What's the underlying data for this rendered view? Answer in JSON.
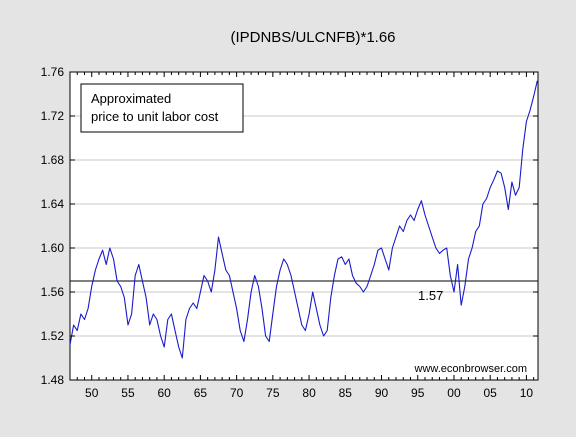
{
  "chart_data": {
    "type": "line",
    "title": "(IPDNBS/ULCNFB)*1.66",
    "xlabel": "",
    "ylabel": "",
    "legend_text": [
      "Approximated",
      "price to unit labor cost"
    ],
    "watermark": "www.econbrowser.com",
    "reference_line": {
      "value": 1.57,
      "label": "1.57"
    },
    "ylim": [
      1.48,
      1.76
    ],
    "y_ticks": [
      1.48,
      1.52,
      1.56,
      1.6,
      1.64,
      1.68,
      1.72,
      1.76
    ],
    "y_tick_labels": [
      "1.48",
      "1.52",
      "1.56",
      "1.60",
      "1.64",
      "1.68",
      "1.72",
      "1.76"
    ],
    "xlim": [
      1947,
      2011.6
    ],
    "x_ticks": [
      1950,
      1955,
      1960,
      1965,
      1970,
      1975,
      1980,
      1985,
      1990,
      1995,
      2000,
      2005,
      2010
    ],
    "x_tick_labels": [
      "50",
      "55",
      "60",
      "65",
      "70",
      "75",
      "80",
      "85",
      "90",
      "95",
      "00",
      "05",
      "10"
    ],
    "grid": true,
    "line_color": "#1a1acc",
    "series": [
      {
        "x": [
          1947.0,
          1947.5,
          1948.0,
          1948.5,
          1949.0,
          1949.5,
          1950.0,
          1950.5,
          1951.0,
          1951.5,
          1952.0,
          1952.5,
          1953.0,
          1953.5,
          1954.0,
          1954.5,
          1955.0,
          1955.5,
          1956.0,
          1956.5,
          1957.0,
          1957.5,
          1958.0,
          1958.5,
          1959.0,
          1959.5,
          1960.0,
          1960.5,
          1961.0,
          1961.5,
          1962.0,
          1962.5,
          1963.0,
          1963.5,
          1964.0,
          1964.5,
          1965.0,
          1965.5,
          1966.0,
          1966.5,
          1967.0,
          1967.5,
          1968.0,
          1968.5,
          1969.0,
          1969.5,
          1970.0,
          1970.5,
          1971.0,
          1971.5,
          1972.0,
          1972.5,
          1973.0,
          1973.5,
          1974.0,
          1974.5,
          1975.0,
          1975.5,
          1976.0,
          1976.5,
          1977.0,
          1977.5,
          1978.0,
          1978.5,
          1979.0,
          1979.5,
          1980.0,
          1980.5,
          1981.0,
          1981.5,
          1982.0,
          1982.5,
          1983.0,
          1983.5,
          1984.0,
          1984.5,
          1985.0,
          1985.5,
          1986.0,
          1986.5,
          1987.0,
          1987.5,
          1988.0,
          1988.5,
          1989.0,
          1989.5,
          1990.0,
          1990.5,
          1991.0,
          1991.5,
          1992.0,
          1992.5,
          1993.0,
          1993.5,
          1994.0,
          1994.5,
          1995.0,
          1995.5,
          1996.0,
          1996.5,
          1997.0,
          1997.5,
          1998.0,
          1998.5,
          1999.0,
          1999.5,
          2000.0,
          2000.5,
          2001.0,
          2001.5,
          2002.0,
          2002.5,
          2003.0,
          2003.5,
          2004.0,
          2004.5,
          2005.0,
          2005.5,
          2006.0,
          2006.5,
          2007.0,
          2007.5,
          2008.0,
          2008.5,
          2009.0,
          2009.5,
          2010.0,
          2010.5,
          2011.0,
          2011.5
        ],
        "y": [
          1.512,
          1.53,
          1.525,
          1.54,
          1.535,
          1.545,
          1.565,
          1.58,
          1.59,
          1.598,
          1.585,
          1.6,
          1.59,
          1.57,
          1.565,
          1.555,
          1.53,
          1.54,
          1.575,
          1.585,
          1.57,
          1.555,
          1.53,
          1.54,
          1.535,
          1.52,
          1.51,
          1.535,
          1.54,
          1.525,
          1.51,
          1.5,
          1.535,
          1.545,
          1.55,
          1.545,
          1.56,
          1.575,
          1.57,
          1.56,
          1.58,
          1.61,
          1.595,
          1.58,
          1.575,
          1.56,
          1.545,
          1.525,
          1.515,
          1.535,
          1.56,
          1.575,
          1.565,
          1.545,
          1.52,
          1.515,
          1.54,
          1.565,
          1.58,
          1.59,
          1.585,
          1.575,
          1.56,
          1.545,
          1.53,
          1.525,
          1.54,
          1.56,
          1.545,
          1.53,
          1.52,
          1.525,
          1.555,
          1.575,
          1.59,
          1.592,
          1.585,
          1.59,
          1.575,
          1.568,
          1.565,
          1.56,
          1.565,
          1.575,
          1.585,
          1.598,
          1.6,
          1.59,
          1.58,
          1.6,
          1.61,
          1.62,
          1.615,
          1.625,
          1.63,
          1.625,
          1.635,
          1.643,
          1.63,
          1.62,
          1.61,
          1.6,
          1.595,
          1.598,
          1.6,
          1.575,
          1.56,
          1.585,
          1.548,
          1.565,
          1.59,
          1.6,
          1.615,
          1.62,
          1.64,
          1.645,
          1.655,
          1.662,
          1.67,
          1.668,
          1.655,
          1.635,
          1.66,
          1.648,
          1.655,
          1.69,
          1.715,
          1.725,
          1.738,
          1.752
        ]
      }
    ]
  }
}
